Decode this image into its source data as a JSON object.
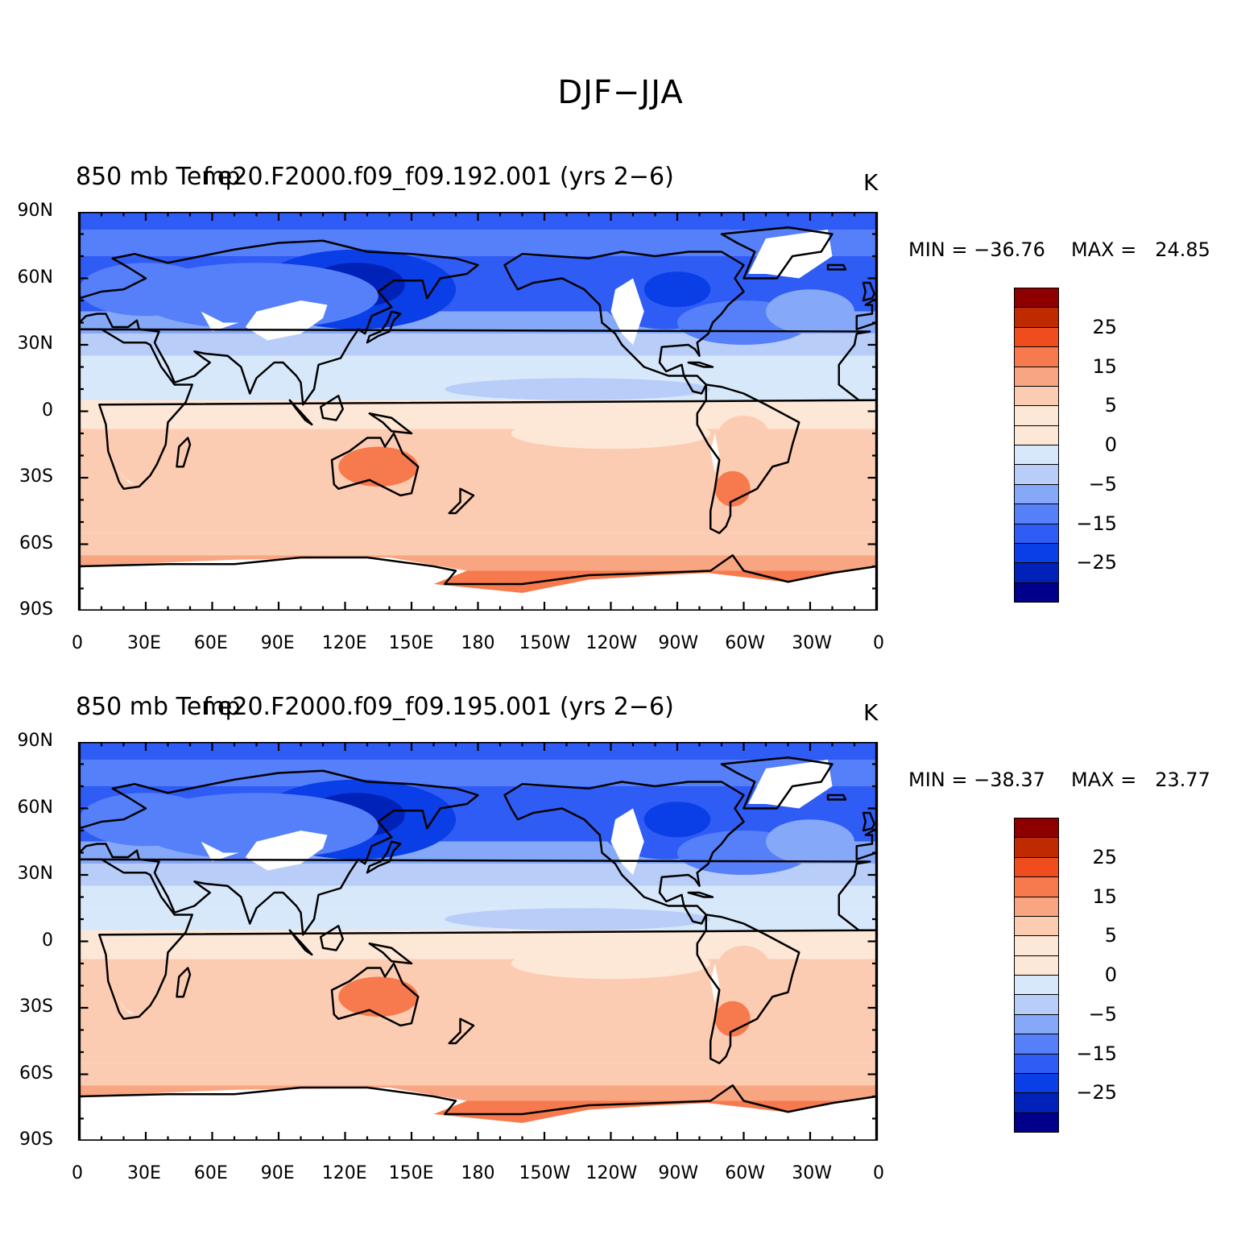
{
  "figure": {
    "title": "DJF−JJA"
  },
  "colors": {
    "levels": [
      -30,
      -25,
      -20,
      -15,
      -10,
      -5,
      0,
      5,
      10,
      15,
      20,
      25
    ],
    "palette": [
      "#00008b",
      "#0022b8",
      "#0a3ee6",
      "#2f5cf5",
      "#5580fa",
      "#86a8f8",
      "#b8cdf8",
      "#d8e8fb",
      "#fde7d6",
      "#fcccb2",
      "#f8a682",
      "#f67a4d",
      "#f04d1f",
      "#c02a00",
      "#8e0000"
    ],
    "land_mask": "#ffffff",
    "coastline": "#000000"
  },
  "axes": {
    "y_ticks": [
      "90N",
      "60N",
      "30N",
      "0",
      "30S",
      "60S",
      "90S"
    ],
    "x_ticks": [
      "0",
      "30E",
      "60E",
      "90E",
      "120E",
      "150E",
      "180",
      "150W",
      "120W",
      "90W",
      "60W",
      "30W",
      "0"
    ]
  },
  "panels": [
    {
      "variable_label": "850 mb Temp",
      "case_label": "f.e20.F2000.f09_f09.192.001 (yrs 2−6)",
      "units": "K",
      "min_label": "MIN = −36.76",
      "max_label": "MAX =   24.85",
      "colorbar_labels": [
        "25",
        "15",
        "5",
        "0",
        "−5",
        "−15",
        "−25"
      ],
      "shade": {
        "siberia_min": -36.76,
        "australia_max": 24.85,
        "antarctic_peninsula": 18
      }
    },
    {
      "variable_label": "850 mb Temp",
      "case_label": "f.e20.F2000.f09_f09.195.001 (yrs 2−6)",
      "units": "K",
      "min_label": "MIN = −38.37",
      "max_label": "MAX =   23.77",
      "colorbar_labels": [
        "25",
        "15",
        "5",
        "0",
        "−5",
        "−15",
        "−25"
      ],
      "shade": {
        "siberia_min": -38.37,
        "australia_max": 23.77,
        "antarctic_peninsula": 17
      }
    }
  ]
}
